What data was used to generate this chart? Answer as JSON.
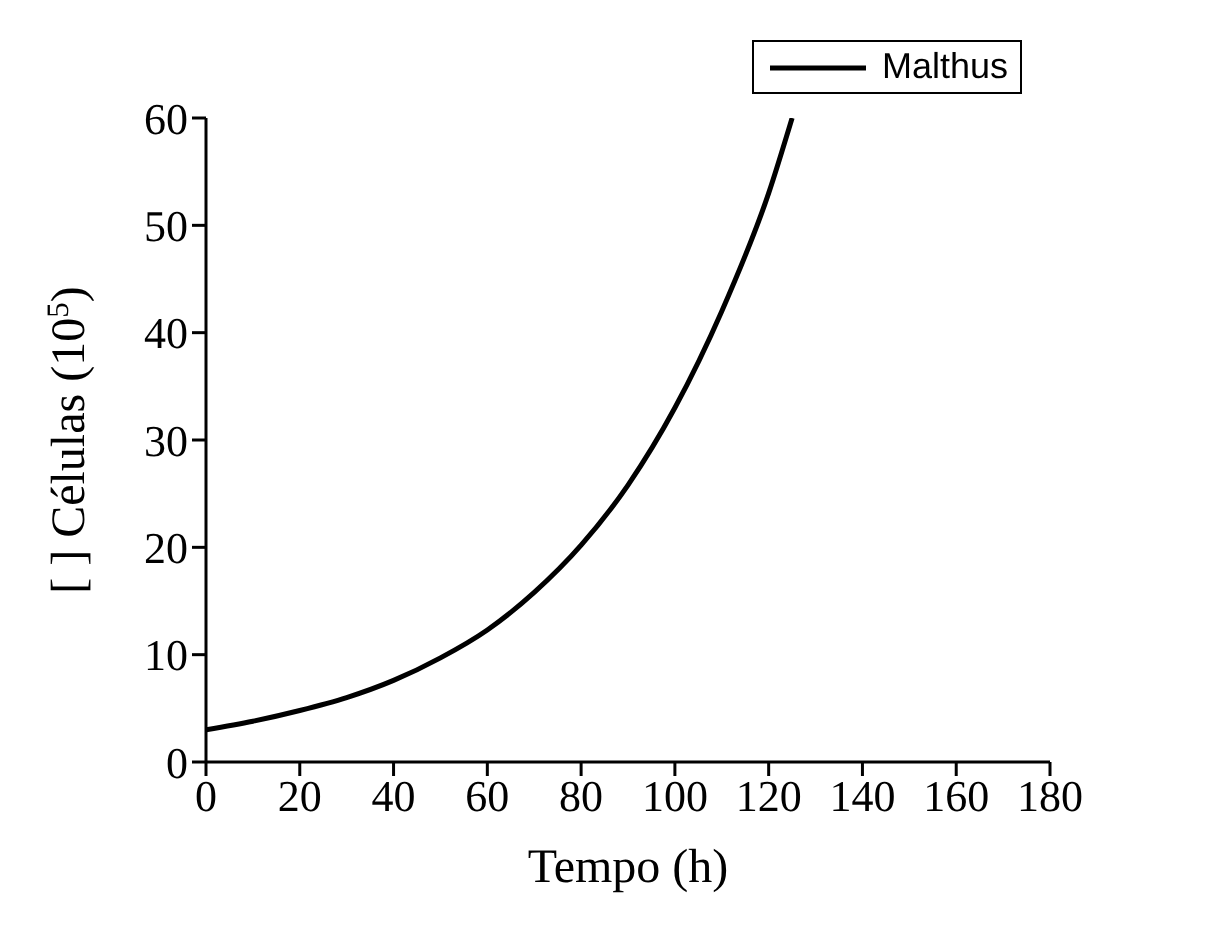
{
  "chart_data": {
    "type": "line",
    "xlabel": "Tempo (h)",
    "ylabel": "[ ] Células (10$^{5}$)",
    "x": [
      0,
      10,
      20,
      30,
      40,
      50,
      60,
      70,
      80,
      90,
      100,
      110,
      120,
      125
    ],
    "series": [
      {
        "name": "Malthus",
        "color": "#000000",
        "values": [
          3.0,
          3.8,
          4.8,
          6.0,
          7.6,
          9.7,
          12.3,
          15.8,
          20.2,
          25.8,
          33,
          42,
          53,
          60
        ]
      }
    ],
    "xlim": [
      0,
      180
    ],
    "xticks": [
      0,
      20,
      40,
      60,
      80,
      100,
      120,
      140,
      160,
      180
    ],
    "ylim": [
      0,
      60
    ],
    "yticks": [
      0,
      10,
      20,
      30,
      40,
      50,
      60
    ],
    "grid": false,
    "legend": "top right",
    "marker": "none",
    "line_style": "solid"
  }
}
